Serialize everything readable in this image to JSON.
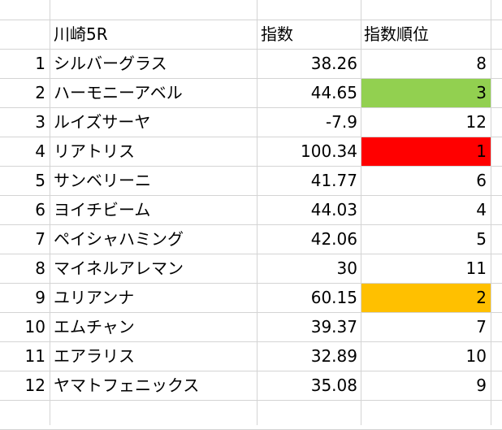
{
  "sheet": {
    "header": {
      "name": "川崎5R",
      "score": "指数",
      "rank": "指数順位"
    },
    "rows": [
      {
        "n": "1",
        "name": "シルバーグラス",
        "score": "38.26",
        "rank": "8",
        "highlight": ""
      },
      {
        "n": "2",
        "name": "ハーモニーアベル",
        "score": "44.65",
        "rank": "3",
        "highlight": "#92d050"
      },
      {
        "n": "3",
        "name": "ルイズサーヤ",
        "score": "-7.9",
        "rank": "12",
        "highlight": ""
      },
      {
        "n": "4",
        "name": "リアトリス",
        "score": "100.34",
        "rank": "1",
        "highlight": "#ff0000"
      },
      {
        "n": "5",
        "name": "サンベリーニ",
        "score": "41.77",
        "rank": "6",
        "highlight": ""
      },
      {
        "n": "6",
        "name": "ヨイチビーム",
        "score": "44.03",
        "rank": "4",
        "highlight": ""
      },
      {
        "n": "7",
        "name": "ペイシャハミング",
        "score": "42.06",
        "rank": "5",
        "highlight": ""
      },
      {
        "n": "8",
        "name": "マイネルアレマン",
        "score": "30",
        "rank": "11",
        "highlight": ""
      },
      {
        "n": "9",
        "name": "ユリアンナ",
        "score": "60.15",
        "rank": "2",
        "highlight": "#ffc000"
      },
      {
        "n": "10",
        "name": "エムチャン",
        "score": "39.37",
        "rank": "7",
        "highlight": ""
      },
      {
        "n": "11",
        "name": "エアラリス",
        "score": "32.89",
        "rank": "10",
        "highlight": ""
      },
      {
        "n": "12",
        "name": "ヤマトフェニックス",
        "score": "35.08",
        "rank": "9",
        "highlight": ""
      }
    ]
  }
}
